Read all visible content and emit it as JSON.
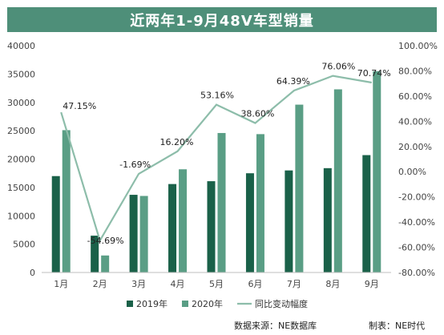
{
  "page": {
    "source_text": "数据来源：NE数据库",
    "maker_text": "制表：NE时代"
  },
  "colors": {
    "series_2019": "#1a6149",
    "series_2020": "#5a9e85",
    "line": "#8dbdaa",
    "title_bg": "#4e8f79"
  },
  "chart_data": {
    "type": "bar",
    "title": "近两年1-9月48V车型销量",
    "categories": [
      "1月",
      "2月",
      "3月",
      "4月",
      "5月",
      "6月",
      "7月",
      "8月",
      "9月"
    ],
    "series": [
      {
        "name": "2019年",
        "type": "bar",
        "axis": "left",
        "values": [
          17000,
          6500,
          13700,
          15600,
          16100,
          17500,
          18000,
          18400,
          20700
        ]
      },
      {
        "name": "2020年",
        "type": "bar",
        "axis": "left",
        "values": [
          25100,
          3000,
          13500,
          18200,
          24600,
          24400,
          29600,
          32300,
          35500
        ]
      },
      {
        "name": "同比变动幅度",
        "type": "line",
        "axis": "right",
        "values": [
          47.15,
          -54.69,
          -1.69,
          16.2,
          53.16,
          38.6,
          64.39,
          76.06,
          70.74
        ],
        "labels": [
          "47.15%",
          "-54.69%",
          "-1.69%",
          "16.20%",
          "53.16%",
          "38.60%",
          "64.39%",
          "76.06%",
          "70.74%"
        ]
      }
    ],
    "y_left": {
      "min": 0,
      "max": 40000,
      "ticks": [
        "0",
        "5000",
        "10000",
        "15000",
        "20000",
        "25000",
        "30000",
        "35000",
        "40000"
      ]
    },
    "y_right": {
      "min": -80,
      "max": 100,
      "ticks": [
        "-80.00%",
        "-60.00%",
        "-40.00%",
        "-20.00%",
        "0.00%",
        "20.00%",
        "40.00%",
        "60.00%",
        "80.00%",
        "100.00%"
      ]
    },
    "grid": false,
    "legend_position": "bottom"
  }
}
